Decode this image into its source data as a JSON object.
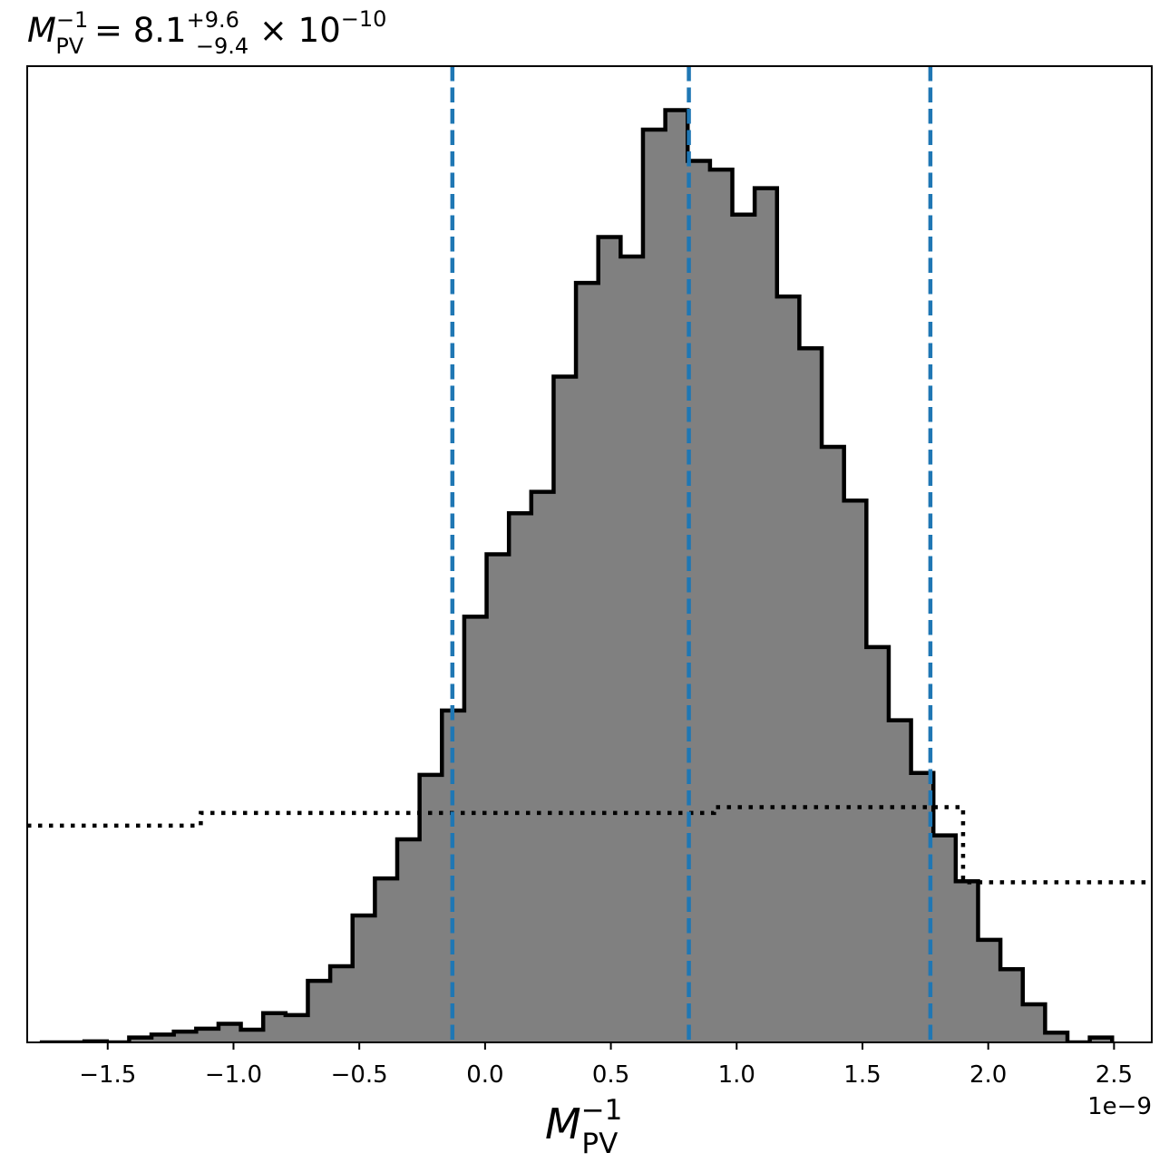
{
  "chart_data": {
    "type": "histogram",
    "title": {
      "symbol": "M",
      "sup": "−1",
      "sub": "PV",
      "equals": " = ",
      "median": "8.1",
      "plus": "+9.6",
      "minus": "−9.4",
      "times": " × 10",
      "exp": "−10"
    },
    "xlabel": {
      "symbol": "M",
      "sup": "−1",
      "sub": "PV"
    },
    "offset_label": "1e−9",
    "x_scale": 1e-09,
    "xlim": [
      -1.82,
      2.65
    ],
    "ylim": [
      0,
      1.0
    ],
    "x_ticks": [
      {
        "value": -1.5,
        "label": "−1.5"
      },
      {
        "value": -1.0,
        "label": "−1.0"
      },
      {
        "value": -0.5,
        "label": "−0.5"
      },
      {
        "value": 0.0,
        "label": "0.0"
      },
      {
        "value": 0.5,
        "label": "0.5"
      },
      {
        "value": 1.0,
        "label": "1.0"
      },
      {
        "value": 1.5,
        "label": "1.5"
      },
      {
        "value": 2.0,
        "label": "2.0"
      },
      {
        "value": 2.5,
        "label": "2.5"
      }
    ],
    "y_ticks_visible": false,
    "grid": false,
    "bins": {
      "start": -1.77,
      "width": 0.0888,
      "heights": [
        0.0,
        0.0,
        0.001,
        0.0,
        0.005,
        0.008,
        0.011,
        0.014,
        0.019,
        0.013,
        0.03,
        0.028,
        0.063,
        0.078,
        0.13,
        0.168,
        0.208,
        0.274,
        0.34,
        0.436,
        0.5,
        0.542,
        0.564,
        0.682,
        0.778,
        0.825,
        0.805,
        0.935,
        0.955,
        0.903,
        0.894,
        0.848,
        0.875,
        0.764,
        0.711,
        0.61,
        0.555,
        0.405,
        0.33,
        0.276,
        0.212,
        0.165,
        0.105,
        0.075,
        0.039,
        0.01,
        0.0,
        0.005
      ]
    },
    "fill_color": "#808080",
    "edge_color": "#000000",
    "prior": {
      "style": "dotted",
      "color": "#000000",
      "steps": [
        {
          "x0": -1.82,
          "x1": -1.13,
          "y": 0.222
        },
        {
          "x0": -1.13,
          "x1": 0.91,
          "y": 0.235
        },
        {
          "x0": 0.91,
          "x1": 1.9,
          "y": 0.241
        },
        {
          "x0": 1.9,
          "x1": 2.65,
          "y": 0.164
        }
      ]
    },
    "quantile_lines": {
      "style": "dashed",
      "color": "#1f77b4",
      "values": [
        -0.13,
        0.81,
        1.77
      ]
    }
  }
}
